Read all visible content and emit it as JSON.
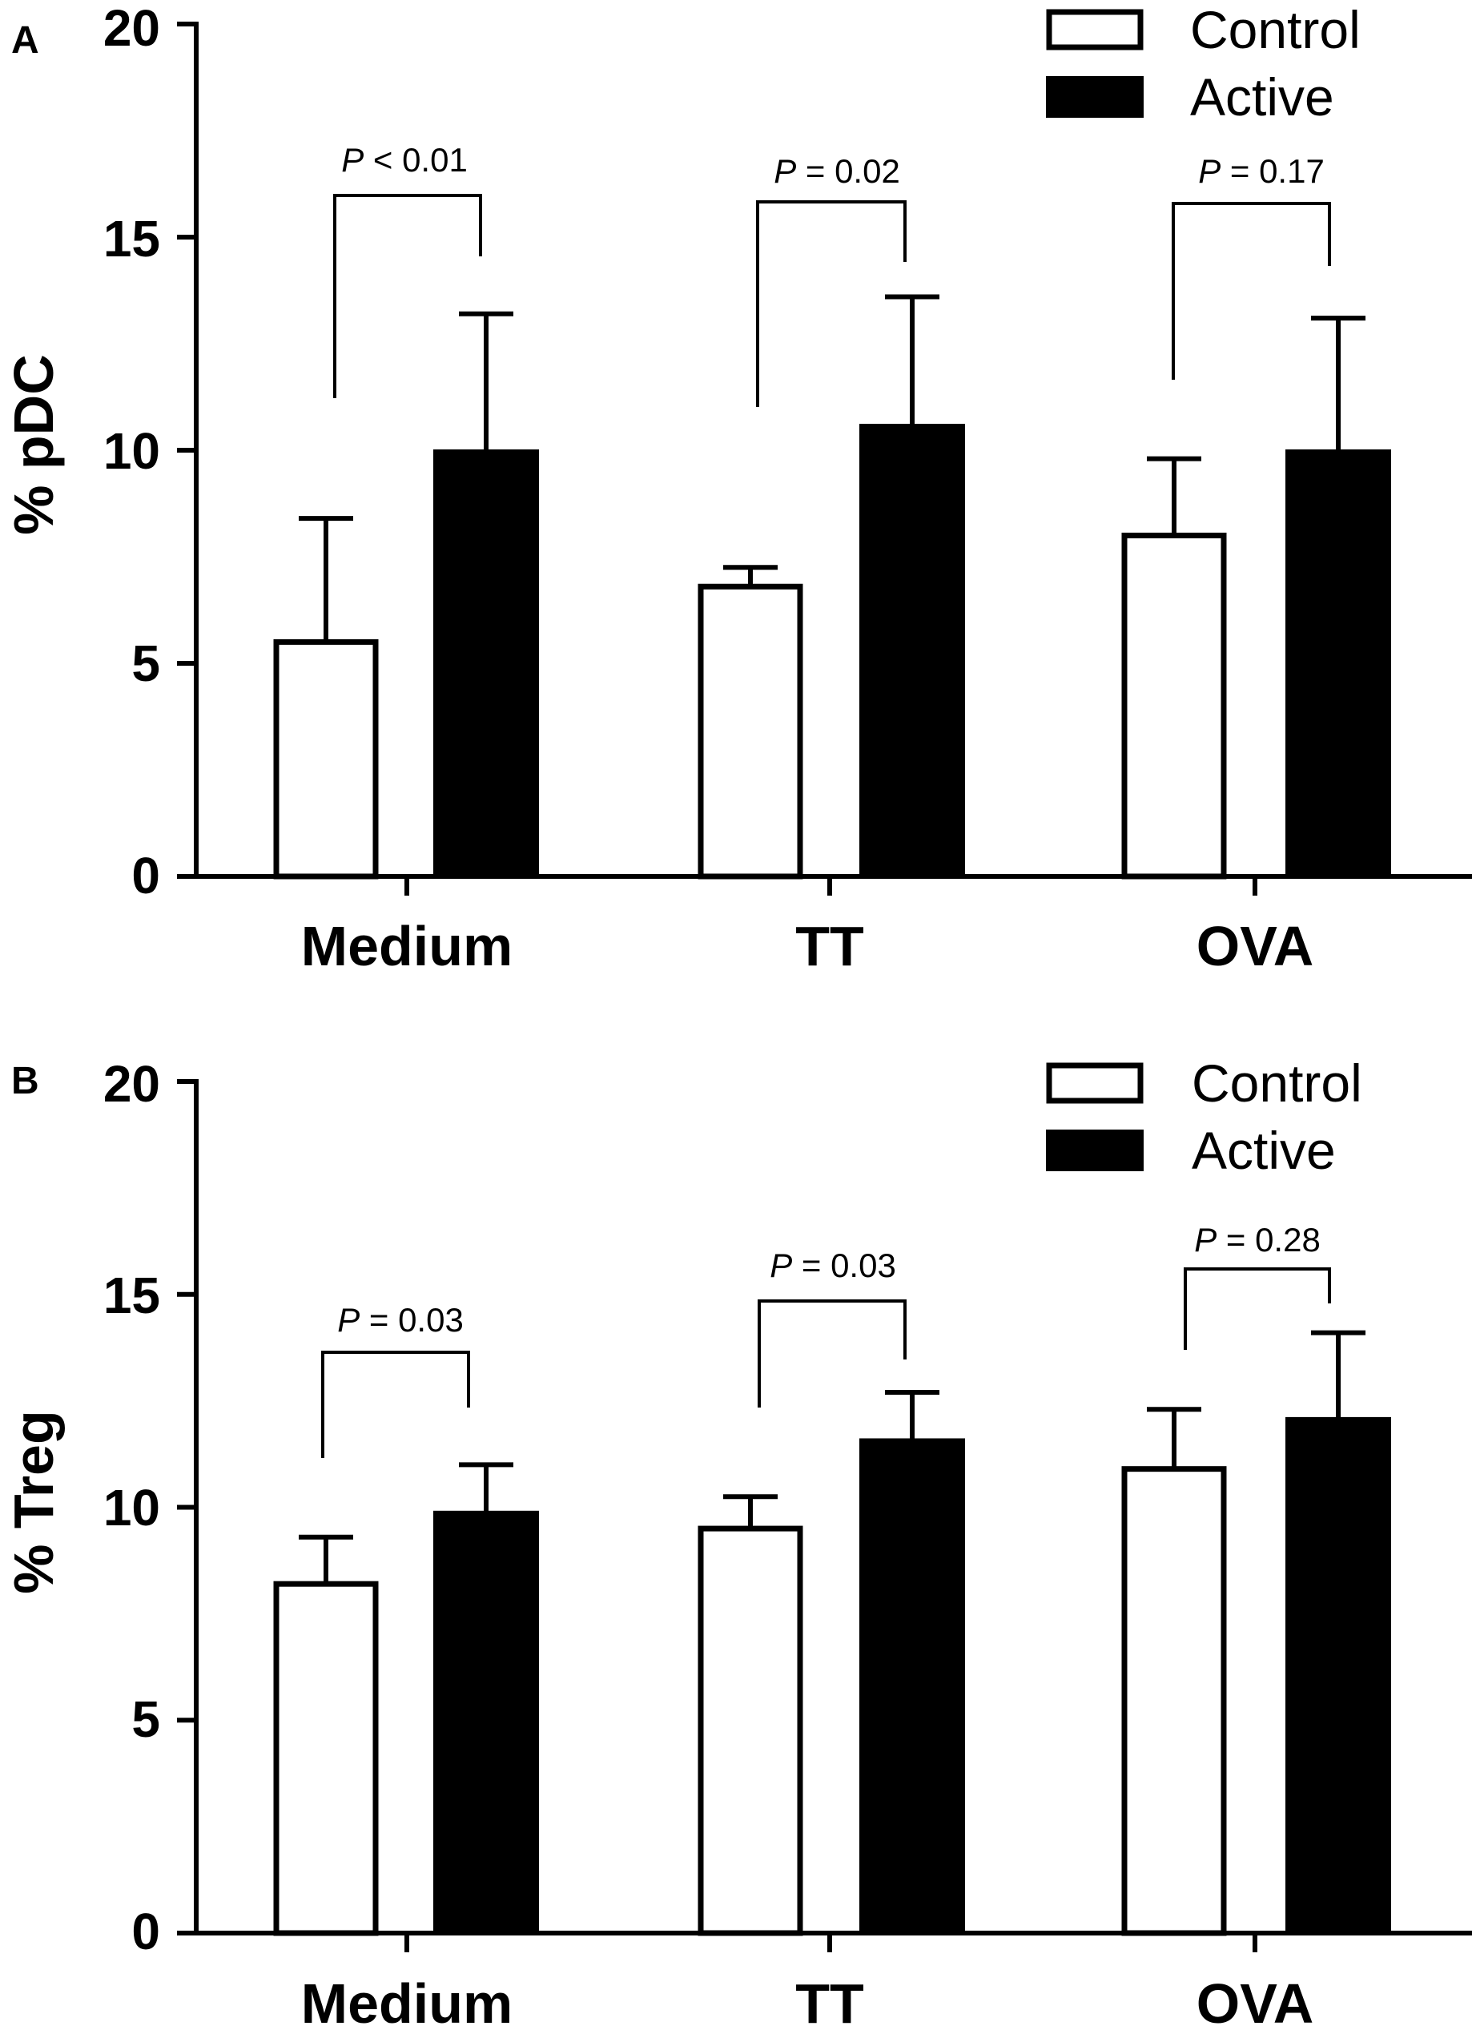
{
  "chart_data": [
    {
      "type": "bar",
      "panel": "A",
      "ylabel": "% pDC",
      "ylim": [
        0,
        20
      ],
      "yticks": [
        "0",
        "5",
        "10",
        "15",
        "20"
      ],
      "categories": [
        "Medium",
        "TT",
        "OVA"
      ],
      "series": [
        {
          "name": "Control",
          "color": "#ffffff",
          "values": [
            5.5,
            6.8,
            8.0
          ],
          "errors": [
            2.9,
            0.45,
            1.8
          ]
        },
        {
          "name": "Active",
          "color": "#000000",
          "values": [
            10.0,
            10.6,
            10.0
          ],
          "errors": [
            3.2,
            3.0,
            3.1
          ]
        }
      ],
      "pvalues": [
        {
          "label_italic": "P",
          "label_rest": " < 0.01"
        },
        {
          "label_italic": "P",
          "label_rest": " = 0.02"
        },
        {
          "label_italic": "P",
          "label_rest": " = 0.17"
        }
      ],
      "legend_position": "top-right"
    },
    {
      "type": "bar",
      "panel": "B",
      "ylabel": "% Treg",
      "ylim": [
        0,
        20
      ],
      "yticks": [
        "0",
        "5",
        "10",
        "15",
        "20"
      ],
      "categories": [
        "Medium",
        "TT",
        "OVA"
      ],
      "series": [
        {
          "name": "Control",
          "color": "#ffffff",
          "values": [
            8.2,
            9.5,
            10.9
          ],
          "errors": [
            1.1,
            0.75,
            1.4
          ]
        },
        {
          "name": "Active",
          "color": "#000000",
          "values": [
            9.9,
            11.6,
            12.1
          ],
          "errors": [
            1.1,
            1.1,
            2.0
          ]
        }
      ],
      "pvalues": [
        {
          "label_italic": "P",
          "label_rest": " = 0.03"
        },
        {
          "label_italic": "P",
          "label_rest": " = 0.03"
        },
        {
          "label_italic": "P",
          "label_rest": " = 0.28"
        }
      ],
      "legend_position": "top-right"
    }
  ]
}
